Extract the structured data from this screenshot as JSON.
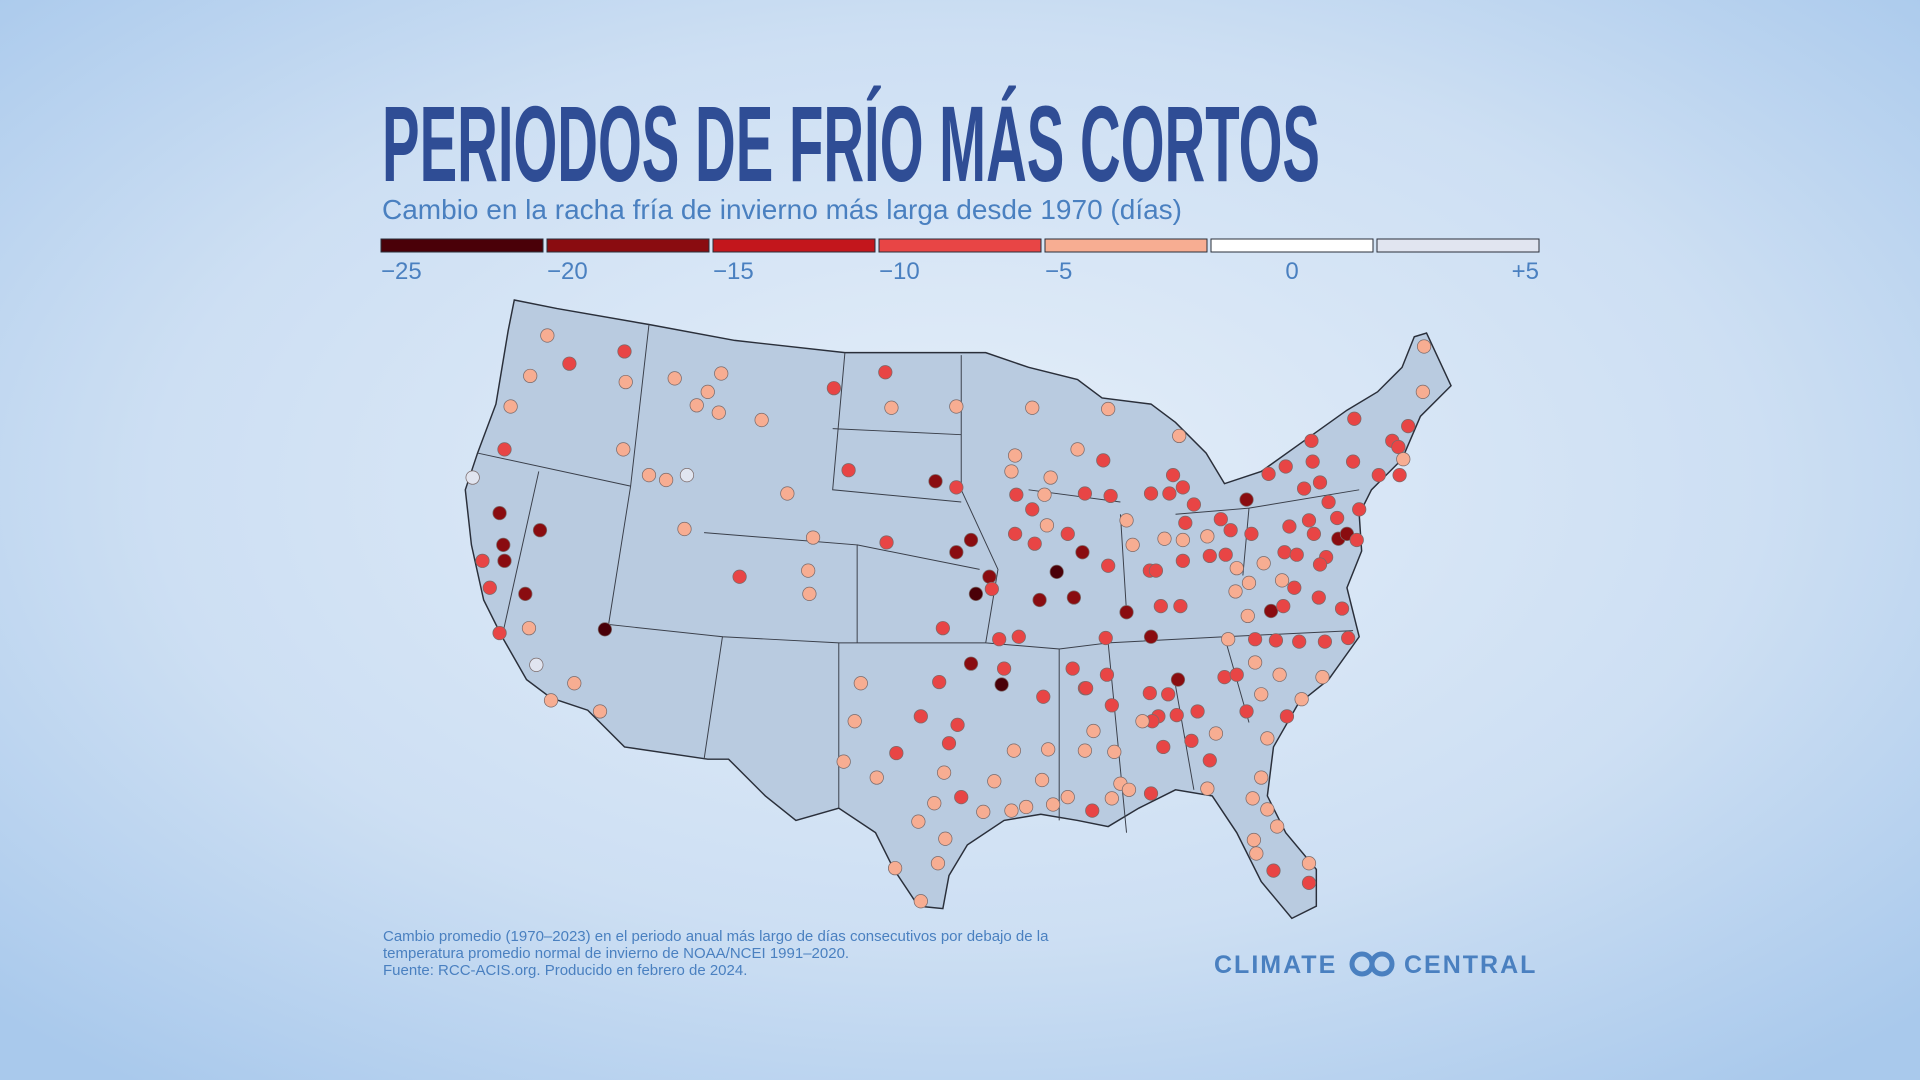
{
  "header": {
    "title": "PERIODOS DE FRÍO MÁS CORTOS",
    "subtitle": "Cambio en la racha fría de invierno más larga desde 1970 (días)"
  },
  "legend": {
    "colors": [
      "#4a0008",
      "#8a0c10",
      "#c3161c",
      "#e84545",
      "#f7ad92",
      "#ffffff",
      "#e1e5f0"
    ],
    "labels": [
      "−25",
      "−20",
      "−15",
      "−10",
      "−5",
      "0",
      "+5"
    ]
  },
  "footnote": [
    "Cambio promedio (1970–2023) en el periodo anual más largo de días consecutivos por debajo de la",
    "temperatura promedio normal de invierno de NOAA/NCEI 1991–2020.",
    "Fuente: RCC-ACIS.org. Producido en febrero de 2024."
  ],
  "logo": {
    "left": "CLIMATE",
    "right": "CENTRAL"
  }
}
